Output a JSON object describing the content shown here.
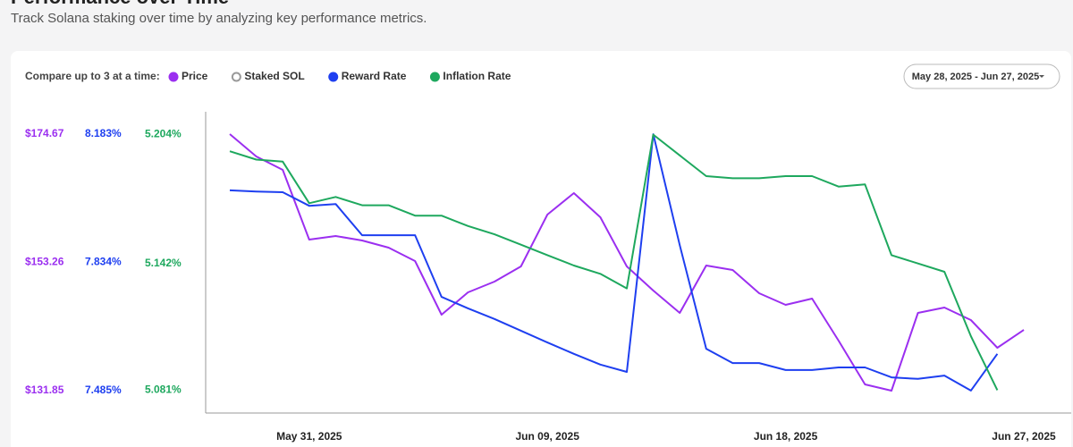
{
  "header": {
    "title": "Performance over Time",
    "subtitle": "Track Solana staking over time by analyzing key performance metrics."
  },
  "controls": {
    "compare_label": "Compare up to 3 at a time:",
    "inactive_metrics": [
      "Staked SOL"
    ],
    "date_range": "May 28, 2025 - Jun 27, 2025"
  },
  "chart_data": {
    "type": "line",
    "x": [
      "May 28, 2025",
      "May 29, 2025",
      "May 30, 2025",
      "May 31, 2025",
      "Jun 01, 2025",
      "Jun 02, 2025",
      "Jun 03, 2025",
      "Jun 04, 2025",
      "Jun 05, 2025",
      "Jun 06, 2025",
      "Jun 07, 2025",
      "Jun 08, 2025",
      "Jun 09, 2025",
      "Jun 10, 2025",
      "Jun 11, 2025",
      "Jun 12, 2025",
      "Jun 13, 2025",
      "Jun 14, 2025",
      "Jun 15, 2025",
      "Jun 16, 2025",
      "Jun 17, 2025",
      "Jun 18, 2025",
      "Jun 19, 2025",
      "Jun 20, 2025",
      "Jun 21, 2025",
      "Jun 22, 2025",
      "Jun 23, 2025",
      "Jun 24, 2025",
      "Jun 25, 2025",
      "Jun 26, 2025",
      "Jun 27, 2025"
    ],
    "xticks": [
      3,
      12,
      21,
      30
    ],
    "series": [
      {
        "name": "Price",
        "color": "#9b2ff0",
        "ylim": [
          128.12,
          178.4
        ],
        "yticks": [
          {
            "value": 174.67,
            "label": "$174.67"
          },
          {
            "value": 153.26,
            "label": "$153.26"
          },
          {
            "value": 131.85,
            "label": "$131.85"
          }
        ],
        "values": [
          174.67,
          170.94,
          168.7,
          157.06,
          157.66,
          156.92,
          155.72,
          153.48,
          144.53,
          148.26,
          150.05,
          152.59,
          161.24,
          164.82,
          160.79,
          152.59,
          148.56,
          144.83,
          152.74,
          151.99,
          148.11,
          146.17,
          147.22,
          140.21,
          132.89,
          131.85,
          144.83,
          145.73,
          143.64,
          139.01,
          142.0
        ]
      },
      {
        "name": "Reward Rate",
        "color": "#1e3ff0",
        "ylim": [
          7.424,
          8.244
        ],
        "yticks": [
          {
            "value": 8.183,
            "label": "8.183%"
          },
          {
            "value": 7.834,
            "label": "7.834%"
          },
          {
            "value": 7.485,
            "label": "7.485%"
          }
        ],
        "values": [
          8.03,
          8.027,
          8.025,
          7.988,
          7.993,
          7.908,
          7.908,
          7.908,
          7.74,
          7.709,
          7.68,
          7.648,
          7.616,
          7.585,
          7.556,
          7.536,
          8.183,
          7.881,
          7.599,
          7.56,
          7.56,
          7.541,
          7.541,
          7.548,
          7.548,
          7.521,
          7.517,
          7.526,
          7.485,
          7.585,
          null
        ]
      },
      {
        "name": "Inflation Rate",
        "color": "#1ea85e",
        "ylim": [
          5.07,
          5.215
        ],
        "yticks": [
          {
            "value": 5.204,
            "label": "5.204%"
          },
          {
            "value": 5.142,
            "label": "5.142%"
          },
          {
            "value": 5.081,
            "label": "5.081%"
          }
        ],
        "values": [
          5.196,
          5.192,
          5.191,
          5.171,
          5.174,
          5.17,
          5.17,
          5.165,
          5.165,
          5.16,
          5.156,
          5.151,
          5.146,
          5.141,
          5.137,
          5.13,
          5.204,
          5.194,
          5.184,
          5.183,
          5.183,
          5.184,
          5.184,
          5.179,
          5.18,
          5.146,
          5.142,
          5.138,
          5.107,
          5.081,
          null
        ]
      }
    ]
  }
}
